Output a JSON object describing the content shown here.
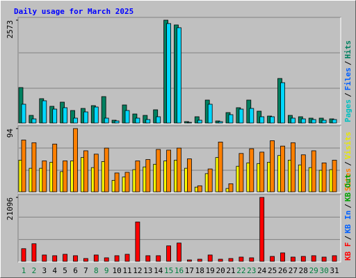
{
  "chart_data": [
    {
      "type": "bar",
      "title": "Daily usage for March 2025",
      "ylim": [
        0,
        2573
      ],
      "yticks": [
        2573
      ],
      "legend": [
        {
          "label": "Pages",
          "color": "#00c0c0"
        },
        {
          "label": "Files",
          "color": "#0060ff"
        },
        {
          "label": "Hits",
          "color": "#008060"
        }
      ],
      "legend_separator": "/",
      "series": [
        {
          "color": "#008060",
          "values": [
            887,
            191,
            609,
            418,
            522,
            313,
            365,
            435,
            661,
            70,
            452,
            226,
            191,
            331,
            2573,
            2453,
            35,
            157,
            574,
            52,
            261,
            383,
            574,
            296,
            174,
            1114,
            191,
            157,
            122,
            122,
            104
          ]
        },
        {
          "color": "#00d8ff",
          "values": [
            470,
            104,
            557,
            348,
            383,
            122,
            278,
            400,
            122,
            52,
            313,
            122,
            87,
            157,
            2488,
            2384,
            17,
            70,
            470,
            35,
            209,
            348,
            365,
            157,
            157,
            1009,
            122,
            104,
            87,
            70,
            87
          ]
        }
      ]
    },
    {
      "type": "bar",
      "ylim": [
        0,
        94
      ],
      "yticks": [
        94
      ],
      "legend": [
        {
          "label": "Sites",
          "color": "#ff8000"
        },
        {
          "label": "Visits",
          "color": "#e8e800"
        }
      ],
      "legend_separator": "/",
      "series": [
        {
          "color": "#ffff00",
          "values": [
            47,
            35,
            35,
            44,
            30,
            46,
            51,
            36,
            45,
            17,
            22,
            33,
            37,
            41,
            46,
            47,
            35,
            7,
            27,
            51,
            5,
            38,
            43,
            42,
            44,
            54,
            47,
            40,
            36,
            32,
            33
          ]
        },
        {
          "color": "#ff8000",
          "values": [
            77,
            73,
            46,
            71,
            46,
            94,
            61,
            56,
            65,
            28,
            29,
            46,
            48,
            63,
            62,
            65,
            49,
            9,
            34,
            74,
            12,
            57,
            64,
            59,
            76,
            68,
            73,
            55,
            61,
            43,
            47
          ]
        }
      ]
    },
    {
      "type": "bar",
      "ylim": [
        0,
        21096
      ],
      "yticks": [
        21096
      ],
      "legend": [
        {
          "label": "KB F",
          "color": "#ff0000"
        },
        {
          "label": "KB In",
          "color": "#0060ff"
        },
        {
          "label": "KB Out",
          "color": "#00a000"
        }
      ],
      "legend_separator": "/",
      "categories": [
        "1",
        "2",
        "3",
        "4",
        "5",
        "6",
        "7",
        "8",
        "9",
        "10",
        "11",
        "12",
        "13",
        "14",
        "15",
        "16",
        "17",
        "18",
        "19",
        "20",
        "21",
        "22",
        "23",
        "24",
        "25",
        "26",
        "27",
        "28",
        "29",
        "30",
        "31"
      ],
      "x_label_colors": [
        "#008040",
        "#008040",
        "#000000",
        "#000000",
        "#000000",
        "#000000",
        "#000000",
        "#008040",
        "#008040",
        "#000000",
        "#000000",
        "#000000",
        "#000000",
        "#000000",
        "#008040",
        "#008040",
        "#000000",
        "#000000",
        "#000000",
        "#000000",
        "#000000",
        "#008040",
        "#008040",
        "#000000",
        "#000000",
        "#000000",
        "#000000",
        "#000000",
        "#008040",
        "#008040",
        "#000000"
      ],
      "series": [
        {
          "color": "#ff0000",
          "values": [
            4176,
            5800,
            2088,
            1856,
            2320,
            1856,
            928,
            2088,
            1160,
            1856,
            2320,
            12992,
            1856,
            1856,
            5104,
            6032,
            464,
            696,
            2088,
            696,
            928,
            1392,
            1160,
            21096,
            1624,
            2784,
            1392,
            1624,
            1856,
            1392,
            1856
          ]
        }
      ]
    }
  ]
}
